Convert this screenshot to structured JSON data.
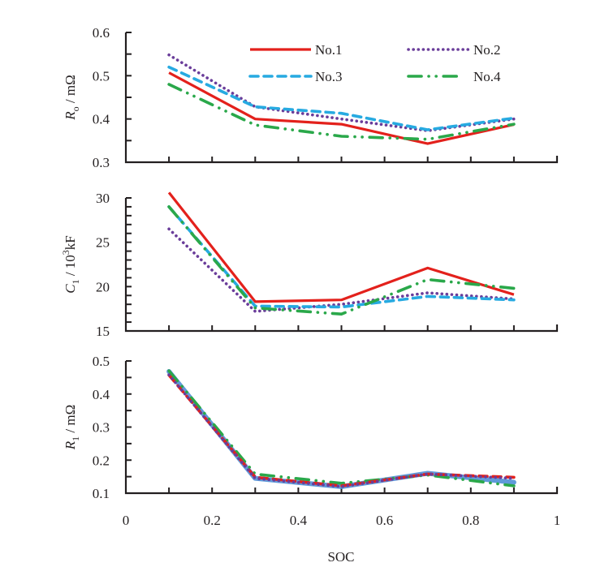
{
  "figure": {
    "shared_xlabel": "SOC",
    "x_ticks": [
      "0",
      "0.2",
      "0.4",
      "0.6",
      "0.8",
      "1"
    ],
    "x_tick_values": [
      0,
      0.2,
      0.4,
      0.6,
      0.8,
      1.0
    ],
    "xlim": [
      0,
      1
    ],
    "minor_x_step": 0.1
  },
  "legend": {
    "placement": "top-right of top panel",
    "entries": [
      {
        "label": "No.1",
        "style": "solid",
        "color": "#e3211c"
      },
      {
        "label": "No.2",
        "style": "dotted",
        "color": "#6a3d9a"
      },
      {
        "label": "No.3",
        "style": "dashed",
        "color": "#27aae1"
      },
      {
        "label": "No.4",
        "style": "dash-dot",
        "color": "#2aa84a"
      }
    ]
  },
  "chart_data": [
    {
      "type": "line",
      "title": "",
      "ylabel_main": "R",
      "ylabel_sub": "o",
      "ylabel_unit": " / mΩ",
      "xlabel": "",
      "ylim": [
        0.3,
        0.6
      ],
      "y_ticks": [
        "0.3",
        "0.4",
        "0.5",
        "0.6"
      ],
      "y_tick_values": [
        0.3,
        0.4,
        0.5,
        0.6
      ],
      "minor_y_step": 0.05,
      "x": [
        0.1,
        0.3,
        0.5,
        0.7,
        0.9
      ],
      "series": [
        {
          "name": "No.1",
          "style": "solid",
          "color": "#e3211c",
          "values": [
            0.507,
            0.4,
            0.388,
            0.343,
            0.387
          ]
        },
        {
          "name": "No.2",
          "style": "dotted",
          "color": "#6a3d9a",
          "values": [
            0.548,
            0.428,
            0.4,
            0.373,
            0.4
          ]
        },
        {
          "name": "No.3",
          "style": "dashed",
          "color": "#27aae1",
          "values": [
            0.52,
            0.428,
            0.413,
            0.375,
            0.402
          ]
        },
        {
          "name": "No.4",
          "style": "dash-dot",
          "color": "#2aa84a",
          "values": [
            0.48,
            0.386,
            0.36,
            0.353,
            0.388
          ]
        }
      ]
    },
    {
      "type": "line",
      "title": "",
      "ylabel_main": "C",
      "ylabel_sub": "1",
      "ylabel_unit": " /  10",
      "ylabel_sup": "3",
      "ylabel_unit2": "kF",
      "xlabel": "",
      "ylim": [
        15,
        30
      ],
      "y_ticks": [
        "15",
        "20",
        "25",
        "30"
      ],
      "y_tick_values": [
        15,
        20,
        25,
        30
      ],
      "minor_y_step": 1,
      "x": [
        0.1,
        0.3,
        0.5,
        0.7,
        0.9
      ],
      "series": [
        {
          "name": "No.1",
          "style": "solid",
          "color": "#e3211c",
          "values": [
            30.6,
            18.3,
            18.5,
            22.1,
            19.1
          ]
        },
        {
          "name": "No.2",
          "style": "dotted",
          "color": "#6a3d9a",
          "values": [
            26.5,
            17.2,
            18.0,
            19.3,
            18.6
          ]
        },
        {
          "name": "No.3",
          "style": "dashed",
          "color": "#27aae1",
          "values": [
            29.0,
            17.8,
            17.7,
            18.9,
            18.5
          ]
        },
        {
          "name": "No.4",
          "style": "dash-dot",
          "color": "#2aa84a",
          "values": [
            29.0,
            17.6,
            16.9,
            20.8,
            19.8
          ]
        }
      ]
    },
    {
      "type": "line",
      "title": "",
      "ylabel_main": "R",
      "ylabel_sub": "1",
      "ylabel_unit": " / mΩ",
      "xlabel": "SOC",
      "ylim": [
        0.1,
        0.5
      ],
      "y_ticks": [
        "0.1",
        "0.2",
        "0.3",
        "0.4",
        "0.5"
      ],
      "y_tick_values": [
        0.1,
        0.2,
        0.3,
        0.4,
        0.5
      ],
      "minor_y_step": 0.05,
      "x": [
        0.1,
        0.3,
        0.5,
        0.7,
        0.9
      ],
      "series": [
        {
          "name": "No.3",
          "style": "solid-thick",
          "color": "#4f8fd6",
          "values": [
            0.468,
            0.145,
            0.12,
            0.16,
            0.133
          ]
        },
        {
          "name": "No.4",
          "style": "dash-dot",
          "color": "#2aa84a",
          "values": [
            0.47,
            0.158,
            0.13,
            0.155,
            0.122
          ]
        },
        {
          "name": "No.1",
          "style": "dashed",
          "color": "#e3211c",
          "values": [
            0.457,
            0.148,
            0.122,
            0.158,
            0.148
          ]
        },
        {
          "name": "No.2",
          "style": "dotted",
          "color": "#6a3d9a",
          "values": [
            0.458,
            0.145,
            0.12,
            0.158,
            0.145
          ]
        }
      ]
    }
  ]
}
